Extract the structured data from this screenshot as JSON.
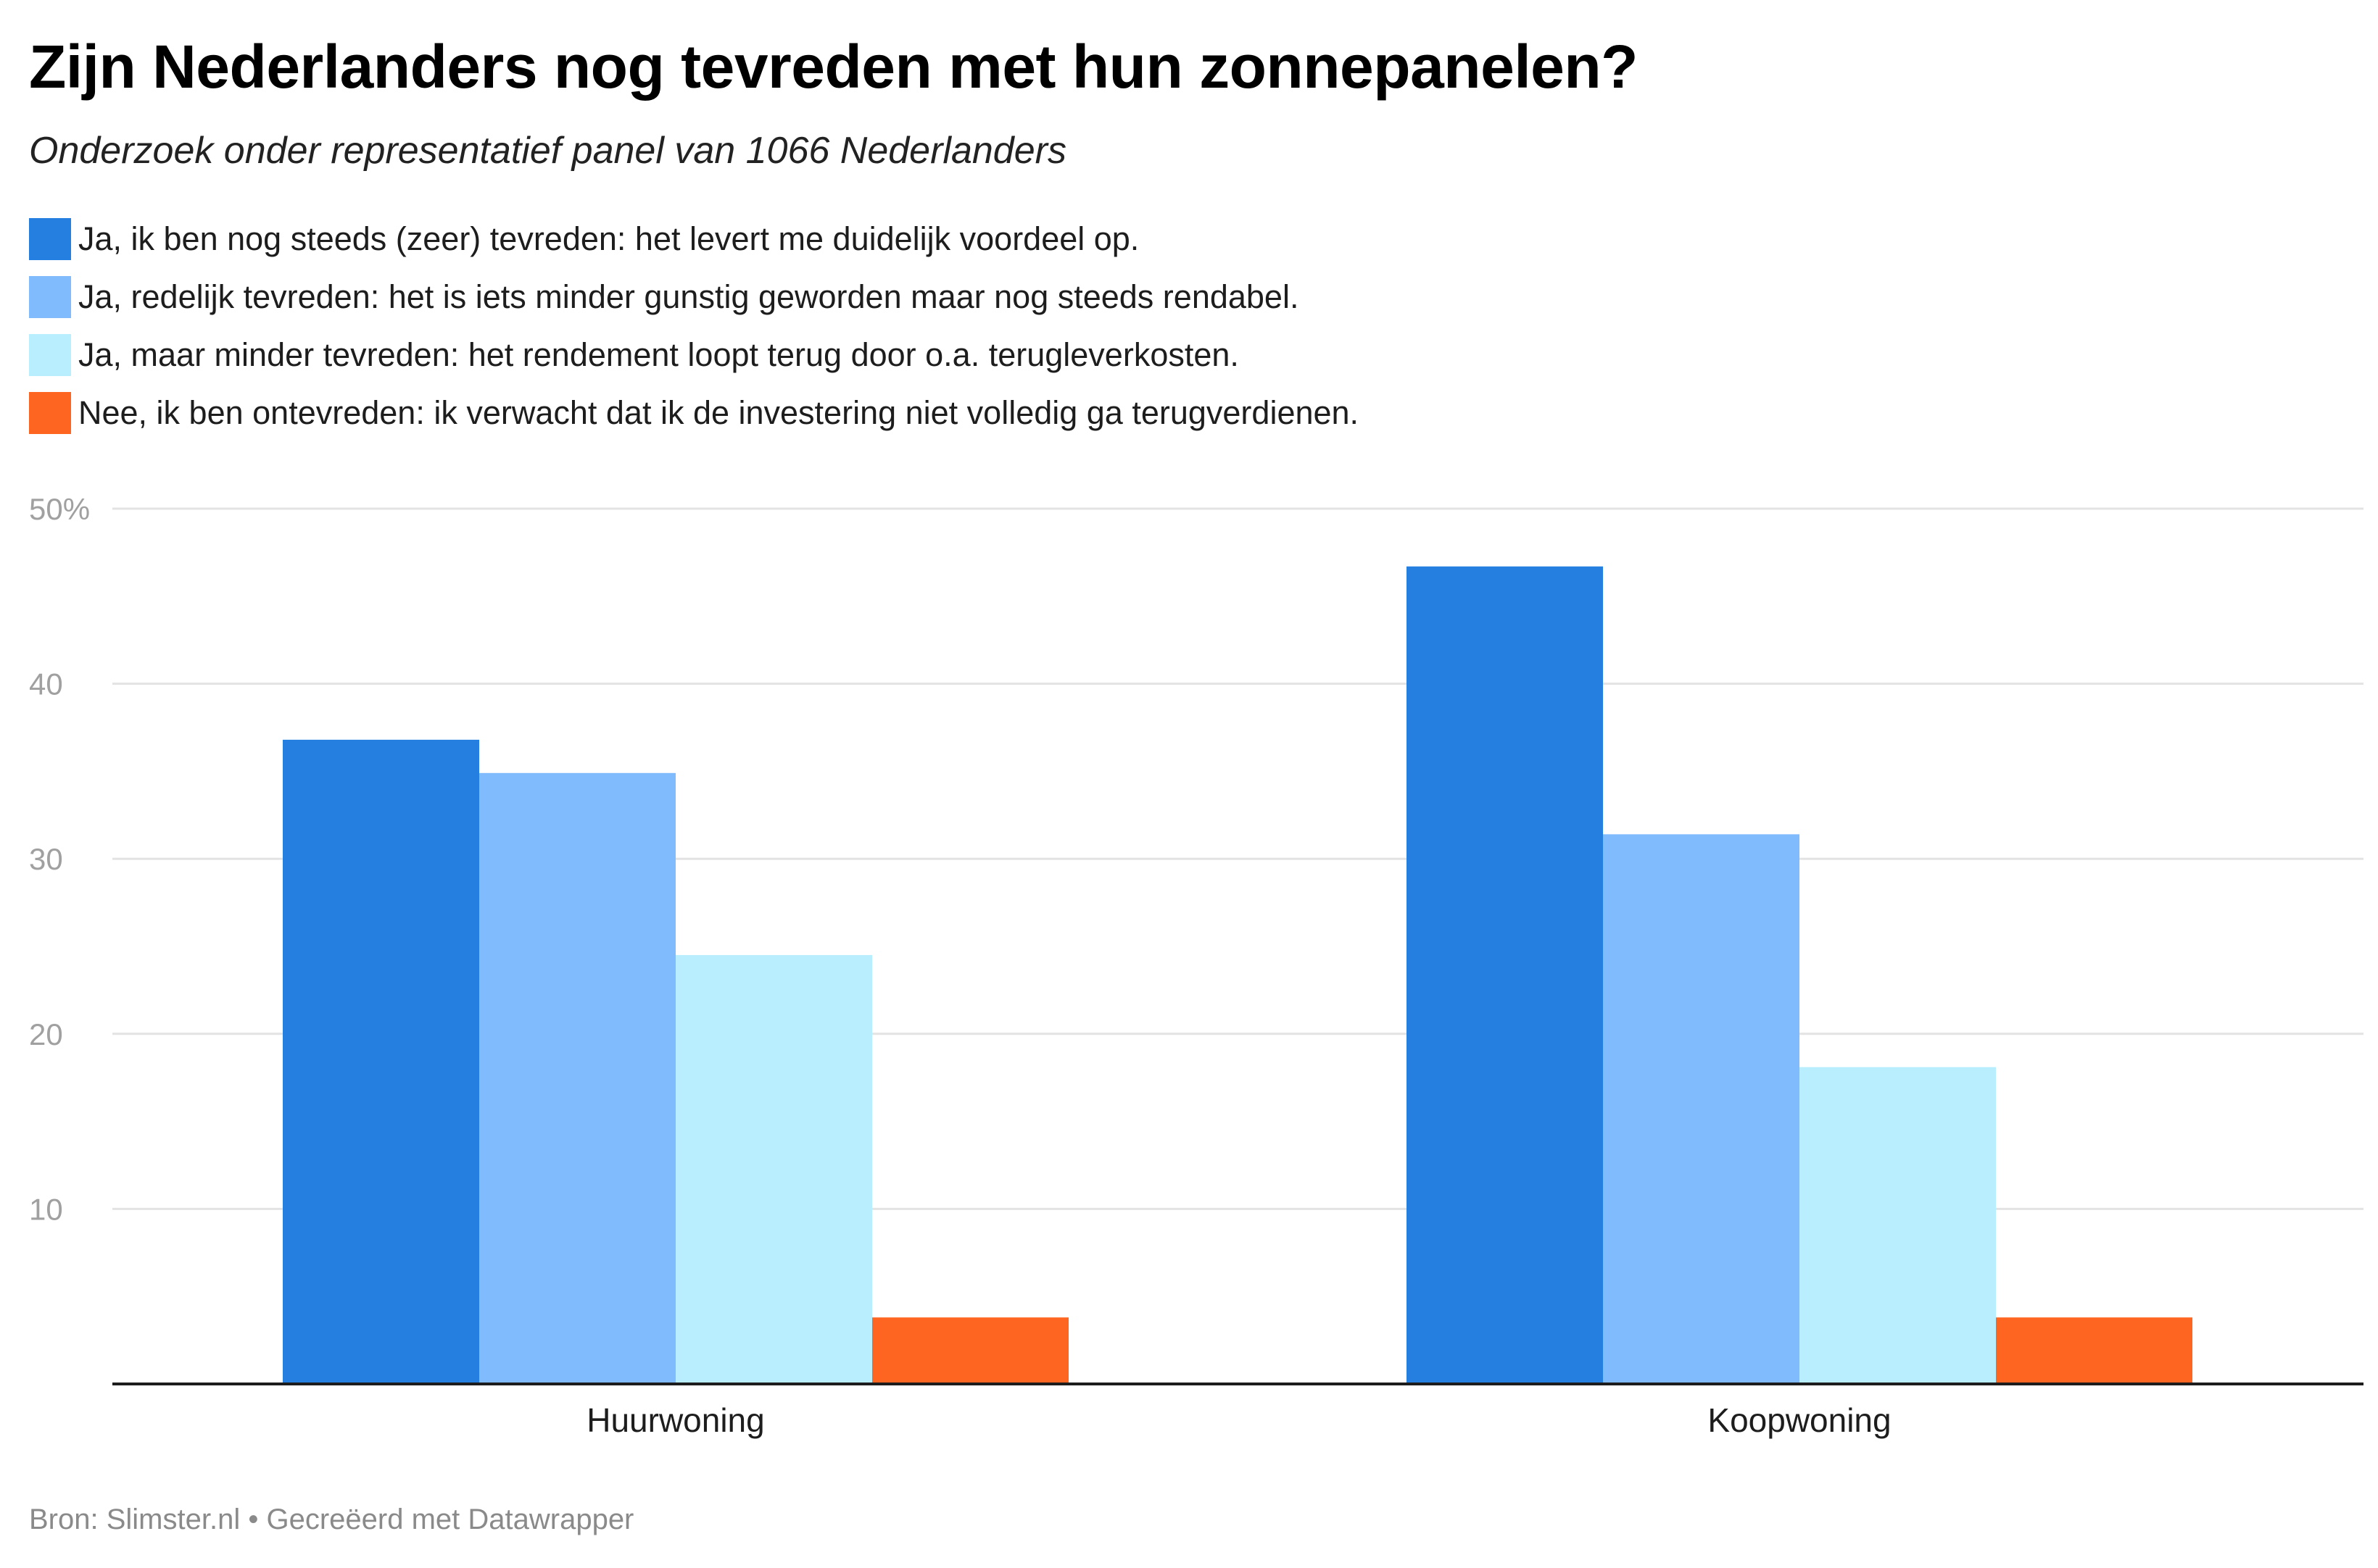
{
  "title": "Zijn Nederlanders nog tevreden met hun zonnepanelen?",
  "subtitle": "Onderzoek onder representatief panel van 1066 Nederlanders",
  "footer": {
    "source_label": "Bron: Slimster.nl",
    "separator": "•",
    "credit": "Gecreëerd met Datawrapper"
  },
  "chart_data": {
    "type": "bar",
    "categories": [
      "Huurwoning",
      "Koopwoning"
    ],
    "series": [
      {
        "name": "Ja, ik ben nog steeds (zeer) tevreden: het levert me duidelijk voordeel op.",
        "color": "#257fe0",
        "values": [
          36.8,
          46.7
        ]
      },
      {
        "name": "Ja, redelijk tevreden: het is iets minder gunstig geworden maar nog steeds rendabel.",
        "color": "#80bbfe",
        "values": [
          34.9,
          31.4
        ]
      },
      {
        "name": "Ja, maar minder tevreden: het rendement loopt terug door o.a. terugleverkosten.",
        "color": "#b9eeff",
        "values": [
          24.5,
          18.1
        ]
      },
      {
        "name": "Nee, ik ben ontevreden: ik verwacht dat ik de investering niet volledig ga terugverdienen.",
        "color": "#fe6520",
        "values": [
          3.8,
          3.8
        ]
      }
    ],
    "yticks": [
      {
        "value": 50,
        "label": "50%"
      },
      {
        "value": 40,
        "label": "40"
      },
      {
        "value": 30,
        "label": "30"
      },
      {
        "value": 20,
        "label": "20"
      },
      {
        "value": 10,
        "label": "10"
      }
    ],
    "ylim": [
      0,
      50
    ],
    "grid": true,
    "legend_position": "top"
  }
}
